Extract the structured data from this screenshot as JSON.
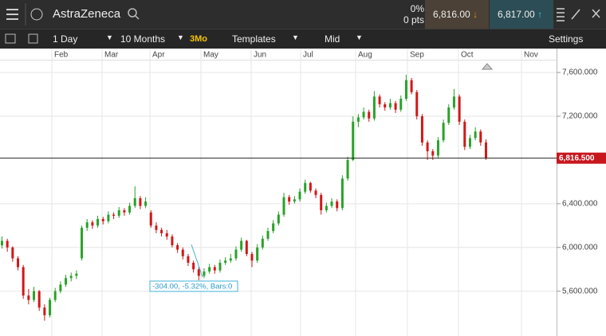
{
  "toolbar": {
    "instrument": "AstraZeneca",
    "change_percent": "0%",
    "change_points": "0 pts",
    "sell_price": "6,816.00",
    "buy_price": "6,817.00",
    "interval": "1 Day",
    "period": "10 Months",
    "quick_period": "3Mo",
    "templates": "Templates",
    "price_mode": "Mid",
    "settings": "Settings"
  },
  "chart": {
    "type": "candlestick",
    "months": [
      "Feb",
      "Mar",
      "Apr",
      "May",
      "Jun",
      "Jul",
      "Aug",
      "Sep",
      "Oct",
      "Nov"
    ],
    "ylim": [
      5190,
      7717
    ],
    "yticks": [
      {
        "value": 5600,
        "label": "5,600.000"
      },
      {
        "value": 6000,
        "label": "6,000.000"
      },
      {
        "value": 6400,
        "label": "6,400.000"
      },
      {
        "value": 7200,
        "label": "7,200.000"
      },
      {
        "value": 7600,
        "label": "7,600.000"
      }
    ],
    "last_price": {
      "value": 6816.5,
      "label": "6,816.500"
    },
    "measure_label": "-304.00, -5.32%, Bars:0",
    "up_color": "#2aa12a",
    "down_color": "#d01818",
    "candles": [
      [
        6020,
        6100,
        5990,
        6060
      ],
      [
        6060,
        6080,
        5960,
        6000
      ],
      [
        6000,
        6010,
        5870,
        5900
      ],
      [
        5900,
        5920,
        5790,
        5820
      ],
      [
        5820,
        5840,
        5530,
        5560
      ],
      [
        5560,
        5620,
        5480,
        5520
      ],
      [
        5520,
        5640,
        5500,
        5600
      ],
      [
        5600,
        5610,
        5420,
        5450
      ],
      [
        5450,
        5480,
        5330,
        5380
      ],
      [
        5380,
        5540,
        5360,
        5520
      ],
      [
        5520,
        5630,
        5500,
        5600
      ],
      [
        5600,
        5690,
        5580,
        5660
      ],
      [
        5660,
        5750,
        5640,
        5720
      ],
      [
        5720,
        5770,
        5690,
        5740
      ],
      [
        5740,
        5790,
        5710,
        5760
      ],
      [
        5900,
        6200,
        5880,
        6180
      ],
      [
        6180,
        6260,
        6150,
        6230
      ],
      [
        6230,
        6250,
        6170,
        6200
      ],
      [
        6200,
        6290,
        6180,
        6260
      ],
      [
        6260,
        6280,
        6210,
        6240
      ],
      [
        6240,
        6330,
        6220,
        6300
      ],
      [
        6300,
        6320,
        6260,
        6290
      ],
      [
        6290,
        6370,
        6270,
        6340
      ],
      [
        6340,
        6360,
        6290,
        6320
      ],
      [
        6320,
        6410,
        6300,
        6380
      ],
      [
        6380,
        6560,
        6360,
        6450
      ],
      [
        6450,
        6470,
        6350,
        6380
      ],
      [
        6380,
        6460,
        6360,
        6420
      ],
      [
        6320,
        6340,
        6180,
        6200
      ],
      [
        6200,
        6230,
        6130,
        6160
      ],
      [
        6160,
        6180,
        6100,
        6130
      ],
      [
        6130,
        6160,
        6070,
        6100
      ],
      [
        6100,
        6120,
        6000,
        6020
      ],
      [
        6020,
        6040,
        5950,
        5980
      ],
      [
        5980,
        6000,
        5890,
        5920
      ],
      [
        5920,
        5940,
        5830,
        5860
      ],
      [
        5860,
        5880,
        5770,
        5800
      ],
      [
        5800,
        5820,
        5700,
        5740
      ],
      [
        5740,
        5810,
        5720,
        5780
      ],
      [
        5780,
        5850,
        5760,
        5820
      ],
      [
        5820,
        5840,
        5760,
        5790
      ],
      [
        5790,
        5890,
        5770,
        5860
      ],
      [
        5860,
        5910,
        5840,
        5880
      ],
      [
        5880,
        5940,
        5860,
        5900
      ],
      [
        5900,
        6010,
        5880,
        5980
      ],
      [
        5980,
        6090,
        5960,
        6060
      ],
      [
        6060,
        6070,
        5920,
        5940
      ],
      [
        5940,
        5960,
        5820,
        5880
      ],
      [
        5880,
        6030,
        5860,
        6000
      ],
      [
        6000,
        6110,
        5980,
        6080
      ],
      [
        6080,
        6180,
        6060,
        6150
      ],
      [
        6150,
        6250,
        6130,
        6220
      ],
      [
        6220,
        6330,
        6200,
        6300
      ],
      [
        6300,
        6500,
        6280,
        6460
      ],
      [
        6460,
        6480,
        6390,
        6420
      ],
      [
        6420,
        6470,
        6400,
        6440
      ],
      [
        6440,
        6540,
        6420,
        6510
      ],
      [
        6510,
        6620,
        6490,
        6590
      ],
      [
        6590,
        6600,
        6500,
        6520
      ],
      [
        6520,
        6540,
        6450,
        6480
      ],
      [
        6480,
        6500,
        6300,
        6340
      ],
      [
        6340,
        6410,
        6320,
        6380
      ],
      [
        6380,
        6450,
        6360,
        6420
      ],
      [
        6420,
        6440,
        6330,
        6360
      ],
      [
        6360,
        6660,
        6340,
        6630
      ],
      [
        6630,
        6830,
        6610,
        6800
      ],
      [
        6800,
        7200,
        6790,
        7150
      ],
      [
        7150,
        7220,
        7100,
        7190
      ],
      [
        7190,
        7280,
        7170,
        7240
      ],
      [
        7240,
        7260,
        7150,
        7180
      ],
      [
        7180,
        7430,
        7160,
        7380
      ],
      [
        7380,
        7400,
        7280,
        7310
      ],
      [
        7310,
        7330,
        7250,
        7280
      ],
      [
        7280,
        7360,
        7260,
        7320
      ],
      [
        7320,
        7340,
        7230,
        7260
      ],
      [
        7260,
        7390,
        7240,
        7360
      ],
      [
        7360,
        7580,
        7340,
        7530
      ],
      [
        7530,
        7550,
        7400,
        7420
      ],
      [
        7420,
        7440,
        7170,
        7200
      ],
      [
        7200,
        7220,
        6930,
        6960
      ],
      [
        6960,
        6980,
        6800,
        6880
      ],
      [
        6880,
        6900,
        6800,
        6840
      ],
      [
        6840,
        7010,
        6820,
        6980
      ],
      [
        6980,
        7170,
        6960,
        7140
      ],
      [
        7140,
        7310,
        7120,
        7280
      ],
      [
        7280,
        7450,
        7260,
        7380
      ],
      [
        7380,
        7400,
        7120,
        7150
      ],
      [
        7150,
        7170,
        6890,
        6920
      ],
      [
        6920,
        7030,
        6900,
        7000
      ],
      [
        7000,
        7100,
        6980,
        7060
      ],
      [
        7060,
        7080,
        6930,
        6960
      ],
      [
        6960,
        6990,
        6800,
        6816.5
      ]
    ]
  }
}
